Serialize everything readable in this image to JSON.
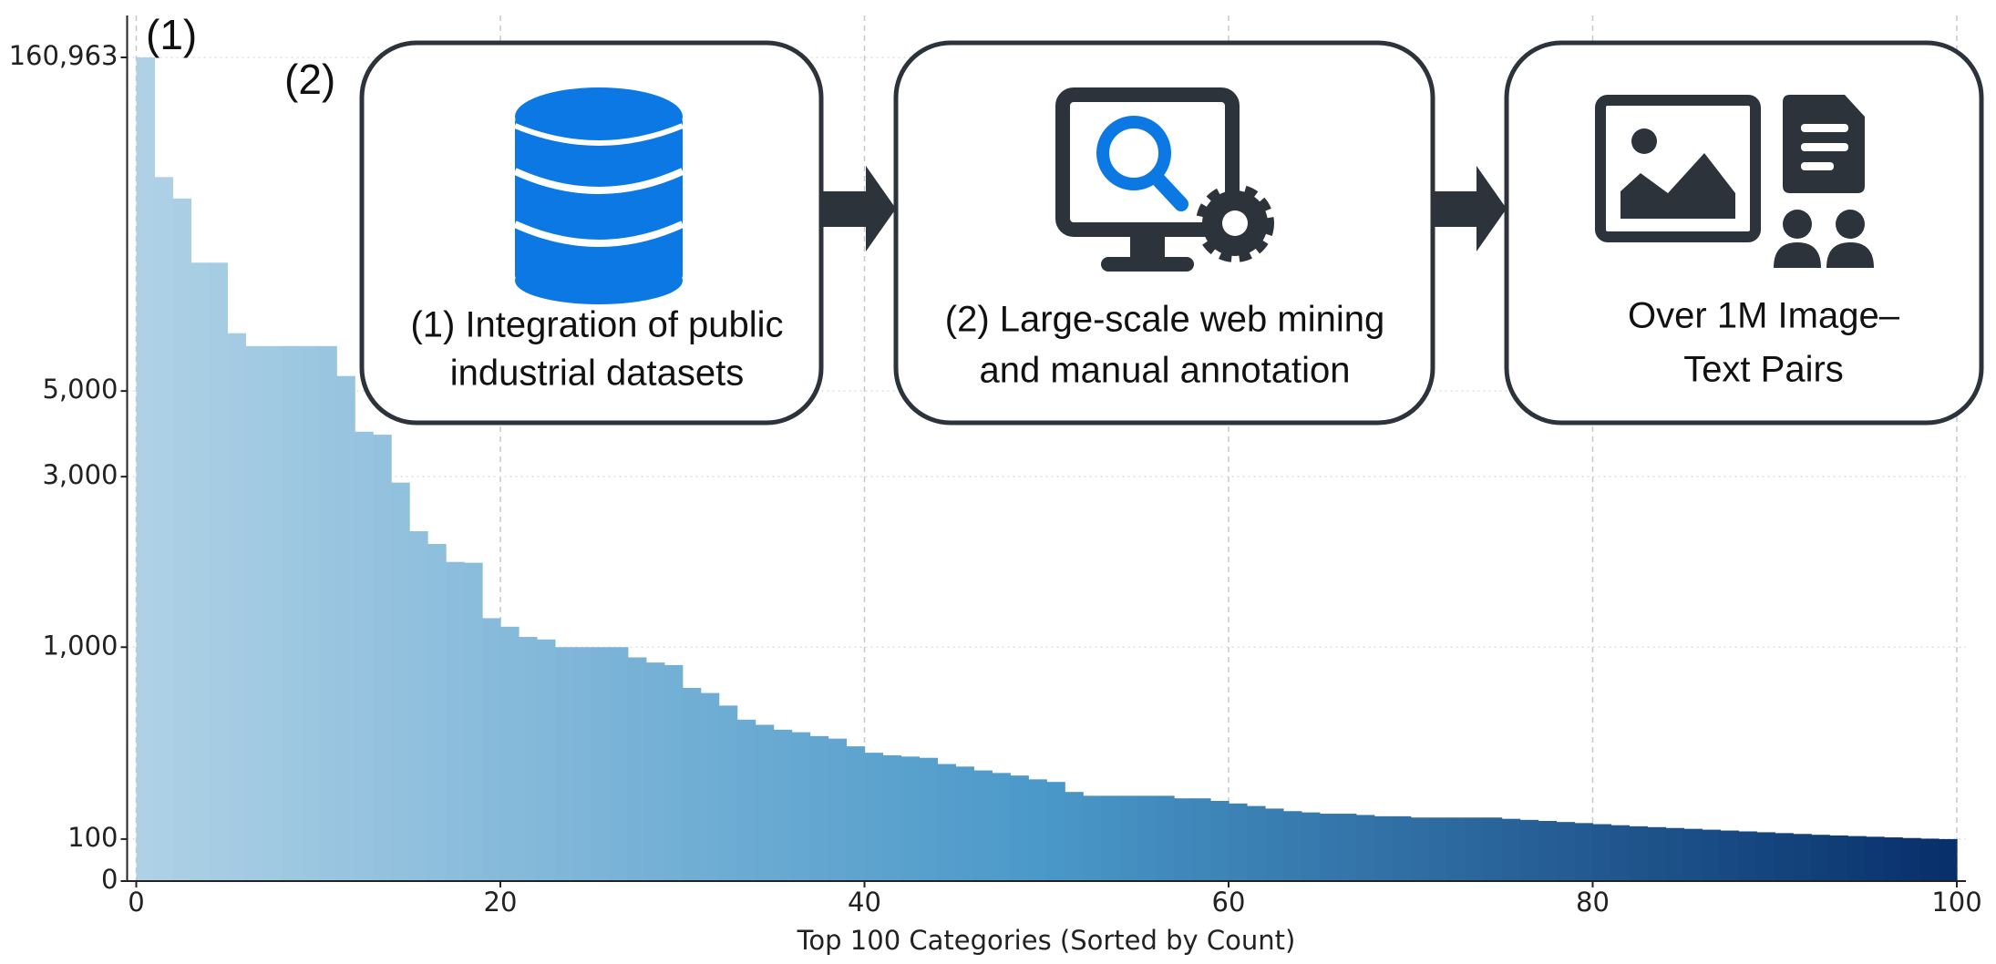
{
  "chart_data": {
    "type": "histogram",
    "xlabel": "Top 100 Categories (Sorted by Count)",
    "annotations": [
      "(1)",
      "(2)"
    ],
    "bins": [
      0,
      1,
      2,
      3,
      4,
      5,
      6,
      7,
      8,
      9,
      10,
      11,
      12,
      13,
      14,
      15,
      16,
      17,
      18,
      19,
      20,
      21,
      22,
      23,
      24,
      25,
      26,
      27,
      28,
      29,
      30,
      31,
      32,
      33,
      34,
      35,
      36,
      37,
      38,
      39,
      40,
      41,
      42,
      43,
      44,
      45,
      46,
      47,
      48,
      49,
      50,
      51,
      52,
      53,
      54,
      55,
      56,
      57,
      58,
      59,
      60,
      61,
      62,
      63,
      64,
      65,
      66,
      67,
      68,
      69,
      70,
      71,
      72,
      73,
      74,
      75,
      76,
      77,
      78,
      79,
      80,
      81,
      82,
      83,
      84,
      85,
      86,
      87,
      88,
      89,
      90,
      91,
      92,
      93,
      94,
      95,
      96,
      97,
      98,
      99,
      100
    ],
    "values": [
      160963,
      105000,
      95000,
      65000,
      65000,
      32000,
      26000,
      26000,
      26000,
      26000,
      26000,
      12000,
      4050,
      3980,
      2930,
      2360,
      2210,
      2000,
      1990,
      1340,
      1240,
      1120,
      1090,
      1000,
      1000,
      1000,
      1000,
      952,
      928,
      916,
      809,
      785,
      726,
      660,
      636,
      613,
      601,
      583,
      571,
      535,
      505,
      493,
      487,
      481,
      452,
      440,
      422,
      410,
      398,
      380,
      368,
      321,
      303,
      303,
      303,
      303,
      303,
      291,
      291,
      279,
      267,
      255,
      243,
      231,
      225,
      219,
      219,
      213,
      207,
      207,
      201,
      201,
      201,
      201,
      201,
      195,
      190,
      185,
      180,
      175,
      170,
      165,
      160,
      156,
      152,
      148,
      144,
      140,
      136,
      132,
      128,
      124,
      120,
      117,
      114,
      111,
      108,
      105,
      102,
      100
    ],
    "colors": [
      "#aed1e6",
      "#4a98c9",
      "#08306b"
    ],
    "xlim": [
      -0.5,
      100.5
    ],
    "xticks": [
      0,
      20,
      40,
      60,
      80,
      100
    ],
    "ylim": [
      0,
      160963
    ],
    "yticks": [
      0,
      100,
      {
        "value": 1000,
        "label": "1,000"
      },
      {
        "value": 3000,
        "label": "3,000"
      },
      {
        "value": 5000,
        "label": "5,000"
      },
      {
        "value": 160963,
        "label": "160,963"
      }
    ],
    "grid": true
  },
  "diagram": {
    "boxes": [
      {
        "lines": [
          "(1) Integration of public",
          "industrial datasets"
        ]
      },
      {
        "lines": [
          "(2) Large-scale web mining",
          "and manual annotation"
        ]
      },
      {
        "lines": [
          "Over 1M Image–",
          "Text Pairs"
        ]
      }
    ]
  }
}
